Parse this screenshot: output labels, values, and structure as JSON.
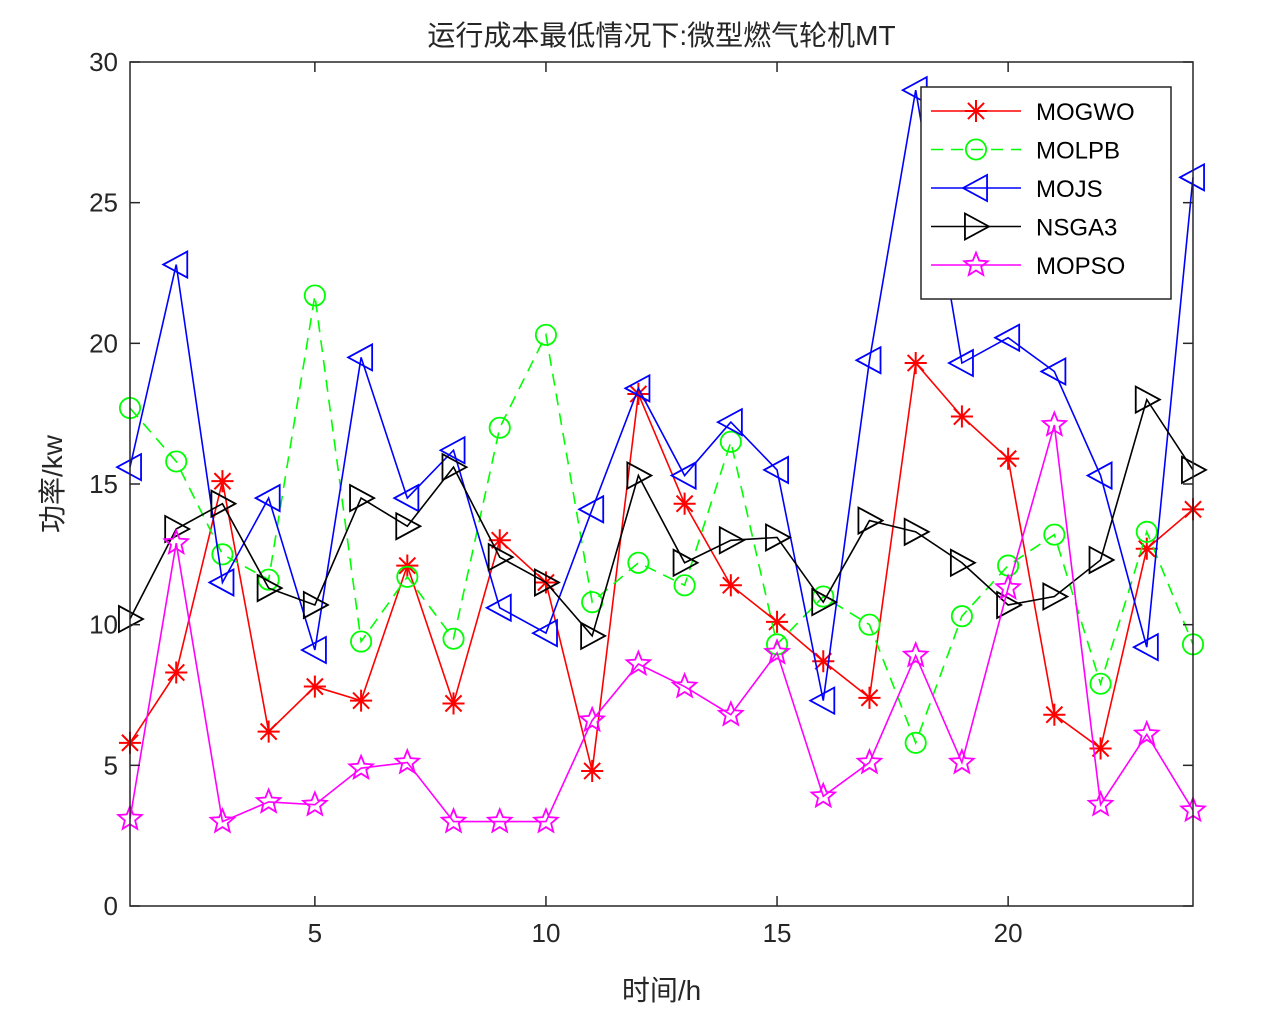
{
  "chart_data": {
    "type": "line",
    "title": "运行成本最低情况下:微型燃气轮机MT",
    "xlabel": "时间/h",
    "ylabel": "功率/kw",
    "xlim": [
      1,
      24
    ],
    "ylim": [
      0,
      30
    ],
    "xticks": [
      5,
      10,
      15,
      20
    ],
    "yticks": [
      0,
      5,
      10,
      15,
      20,
      25,
      30
    ],
    "x": [
      1,
      2,
      3,
      4,
      5,
      6,
      7,
      8,
      9,
      10,
      11,
      12,
      13,
      14,
      15,
      16,
      17,
      18,
      19,
      20,
      21,
      22,
      23,
      24
    ],
    "legend_position": "top-right",
    "series": [
      {
        "name": "MOGWO",
        "color": "#ff0000",
        "line_style": "solid",
        "marker": "asterisk",
        "values": [
          5.8,
          8.3,
          15.1,
          6.2,
          7.8,
          7.3,
          12.1,
          7.2,
          13.0,
          11.5,
          4.8,
          18.2,
          14.3,
          11.4,
          10.1,
          8.7,
          7.4,
          19.3,
          17.4,
          15.9,
          6.8,
          5.6,
          12.7,
          14.1
        ]
      },
      {
        "name": "MOLPB",
        "color": "#00ff00",
        "line_style": "dashed",
        "marker": "circle",
        "values": [
          17.7,
          15.8,
          12.5,
          11.6,
          21.7,
          9.4,
          11.7,
          9.5,
          17.0,
          20.3,
          10.8,
          12.2,
          11.4,
          16.5,
          9.3,
          11.0,
          10.0,
          5.8,
          10.3,
          12.1,
          13.2,
          7.9,
          13.3,
          9.3
        ]
      },
      {
        "name": "MOJS",
        "color": "#0000ff",
        "line_style": "solid",
        "marker": "triangle-left",
        "values": [
          15.6,
          22.8,
          11.5,
          14.5,
          9.1,
          19.5,
          14.5,
          16.2,
          10.6,
          9.7,
          14.1,
          18.4,
          15.3,
          17.2,
          15.5,
          7.3,
          19.4,
          29.0,
          19.3,
          20.2,
          19.0,
          15.3,
          9.2,
          25.9
        ]
      },
      {
        "name": "NSGA3",
        "color": "#000000",
        "line_style": "solid",
        "marker": "triangle-right",
        "values": [
          10.2,
          13.4,
          14.3,
          11.3,
          10.7,
          14.5,
          13.5,
          15.6,
          12.4,
          11.5,
          9.6,
          15.3,
          12.2,
          13.0,
          13.1,
          10.8,
          13.7,
          13.3,
          12.2,
          10.7,
          11.0,
          12.3,
          18.0,
          15.5
        ]
      },
      {
        "name": "MOPSO",
        "color": "#ff00ff",
        "line_style": "solid",
        "marker": "star",
        "values": [
          3.1,
          12.9,
          3.0,
          3.7,
          3.6,
          4.9,
          5.1,
          3.0,
          3.0,
          3.0,
          6.6,
          8.6,
          7.8,
          6.8,
          9.0,
          3.9,
          5.1,
          8.9,
          5.1,
          11.3,
          17.1,
          3.6,
          6.1,
          3.4
        ]
      }
    ]
  }
}
